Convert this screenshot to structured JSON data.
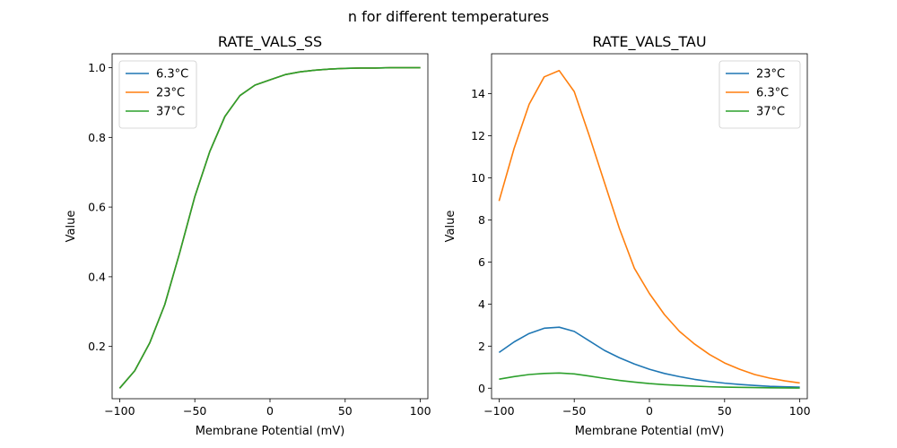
{
  "figure": {
    "suptitle": "n for different temperatures"
  },
  "chart_data": [
    {
      "type": "line",
      "title": "RATE_VALS_SS",
      "xlabel": "Membrane Potential (mV)",
      "ylabel": "Value",
      "xlim": [
        -105,
        105
      ],
      "ylim": [
        0.05,
        1.04
      ],
      "xticks": [
        -100,
        -50,
        0,
        50,
        100
      ],
      "yticks": [
        0.2,
        0.4,
        0.6,
        0.8,
        1.0
      ],
      "ytick_labels": [
        "0.2",
        "0.4",
        "0.6",
        "0.8",
        "1.0"
      ],
      "legend_position": "top-left",
      "grid": false,
      "x": [
        -100,
        -90,
        -80,
        -70,
        -60,
        -50,
        -40,
        -30,
        -20,
        -10,
        0,
        10,
        20,
        30,
        40,
        50,
        60,
        70,
        80,
        90,
        100
      ],
      "series": [
        {
          "name": "6.3°C",
          "color": "#1f77b4",
          "values": [
            0.08,
            0.13,
            0.21,
            0.32,
            0.47,
            0.63,
            0.76,
            0.86,
            0.92,
            0.95,
            0.965,
            0.98,
            0.988,
            0.993,
            0.996,
            0.998,
            0.999,
            0.999,
            1.0,
            1.0,
            1.0
          ]
        },
        {
          "name": "23°C",
          "color": "#ff7f0e",
          "values": [
            0.08,
            0.13,
            0.21,
            0.32,
            0.47,
            0.63,
            0.76,
            0.86,
            0.92,
            0.95,
            0.965,
            0.98,
            0.988,
            0.993,
            0.996,
            0.998,
            0.999,
            0.999,
            1.0,
            1.0,
            1.0
          ]
        },
        {
          "name": "37°C",
          "color": "#2ca02c",
          "values": [
            0.08,
            0.13,
            0.21,
            0.32,
            0.47,
            0.63,
            0.76,
            0.86,
            0.92,
            0.95,
            0.965,
            0.98,
            0.988,
            0.993,
            0.996,
            0.998,
            0.999,
            0.999,
            1.0,
            1.0,
            1.0
          ]
        }
      ]
    },
    {
      "type": "line",
      "title": "RATE_VALS_TAU",
      "xlabel": "Membrane Potential (mV)",
      "ylabel": "Value",
      "xlim": [
        -105,
        105
      ],
      "ylim": [
        -0.5,
        15.9
      ],
      "xticks": [
        -100,
        -50,
        0,
        50,
        100
      ],
      "yticks": [
        0,
        2,
        4,
        6,
        8,
        10,
        12,
        14
      ],
      "ytick_labels": [
        "0",
        "2",
        "4",
        "6",
        "8",
        "10",
        "12",
        "14"
      ],
      "legend_position": "top-right",
      "grid": false,
      "x": [
        -100,
        -90,
        -80,
        -70,
        -60,
        -50,
        -40,
        -30,
        -20,
        -10,
        0,
        10,
        20,
        30,
        40,
        50,
        60,
        70,
        80,
        90,
        100
      ],
      "series": [
        {
          "name": "23°C",
          "color": "#1f77b4",
          "values": [
            1.7,
            2.2,
            2.6,
            2.85,
            2.9,
            2.7,
            2.25,
            1.8,
            1.45,
            1.15,
            0.9,
            0.7,
            0.55,
            0.42,
            0.32,
            0.24,
            0.18,
            0.13,
            0.09,
            0.07,
            0.05
          ]
        },
        {
          "name": "6.3°C",
          "color": "#ff7f0e",
          "values": [
            8.9,
            11.4,
            13.5,
            14.8,
            15.1,
            14.1,
            12.0,
            9.8,
            7.6,
            5.7,
            4.5,
            3.5,
            2.7,
            2.1,
            1.6,
            1.2,
            0.9,
            0.65,
            0.48,
            0.35,
            0.25
          ]
        },
        {
          "name": "37°C",
          "color": "#2ca02c",
          "values": [
            0.43,
            0.55,
            0.65,
            0.7,
            0.72,
            0.68,
            0.58,
            0.47,
            0.37,
            0.29,
            0.22,
            0.17,
            0.13,
            0.1,
            0.07,
            0.05,
            0.04,
            0.03,
            0.02,
            0.015,
            0.01
          ]
        }
      ]
    }
  ]
}
